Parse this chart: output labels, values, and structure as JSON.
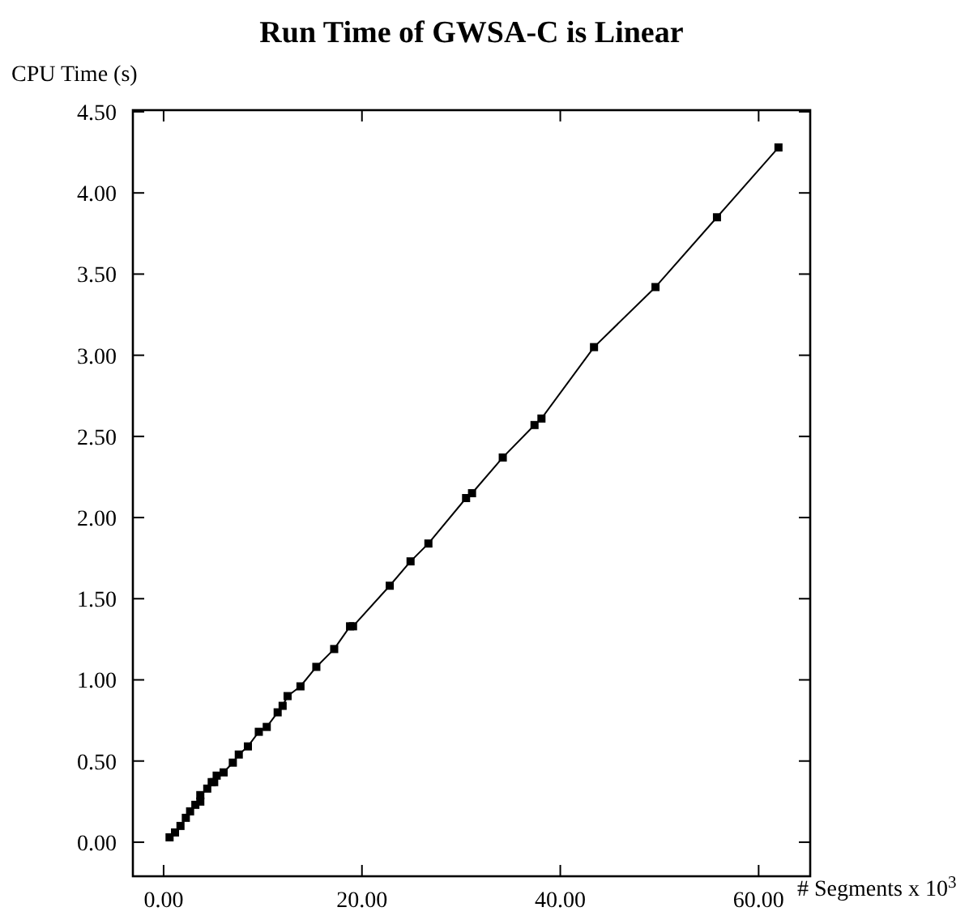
{
  "chart_data": {
    "type": "line",
    "title": "Run Time of GWSA-C is Linear",
    "xlabel": "# Segments x 10$^{3}$",
    "ylabel": "CPU Time (s)",
    "marker": "square",
    "line_style": "solid",
    "grid": false,
    "xlim": [
      -3.1,
      65.2
    ],
    "ylim": [
      -0.21,
      4.51
    ],
    "xticks": [
      {
        "value": 0,
        "label": "0.00"
      },
      {
        "value": 20,
        "label": "20.00"
      },
      {
        "value": 40,
        "label": "40.00"
      },
      {
        "value": 60,
        "label": "60.00"
      }
    ],
    "yticks": [
      {
        "value": 0,
        "label": "0.00"
      },
      {
        "value": 0.5,
        "label": "0.50"
      },
      {
        "value": 1,
        "label": "1.00"
      },
      {
        "value": 1.5,
        "label": "1.50"
      },
      {
        "value": 2,
        "label": "2.00"
      },
      {
        "value": 2.5,
        "label": "2.50"
      },
      {
        "value": 3,
        "label": "3.00"
      },
      {
        "value": 3.5,
        "label": "3.50"
      },
      {
        "value": 4,
        "label": "4.00"
      },
      {
        "value": 4.5,
        "label": "4.50"
      }
    ],
    "x": [
      0.6,
      1.15,
      1.7,
      2.24,
      2.67,
      3.2,
      3.7,
      3.7,
      4.4,
      4.85,
      5.1,
      5.35,
      6.05,
      6.98,
      7.58,
      8.5,
      9.6,
      10.4,
      11.5,
      12.0,
      12.5,
      13.8,
      15.4,
      17.2,
      18.8,
      19.1,
      22.8,
      24.9,
      26.7,
      30.5,
      31.1,
      34.2,
      37.4,
      38.1,
      43.4,
      49.6,
      55.8,
      62.0
    ],
    "series": [
      {
        "color": "#000000",
        "values": [
          0.03,
          0.06,
          0.1,
          0.15,
          0.19,
          0.23,
          0.25,
          0.29,
          0.33,
          0.37,
          0.37,
          0.41,
          0.43,
          0.49,
          0.54,
          0.59,
          0.68,
          0.71,
          0.8,
          0.84,
          0.9,
          0.96,
          1.08,
          1.19,
          1.33,
          1.33,
          1.58,
          1.73,
          1.84,
          2.12,
          2.15,
          2.37,
          2.57,
          2.61,
          3.05,
          3.42,
          3.85,
          4.28
        ]
      }
    ]
  }
}
